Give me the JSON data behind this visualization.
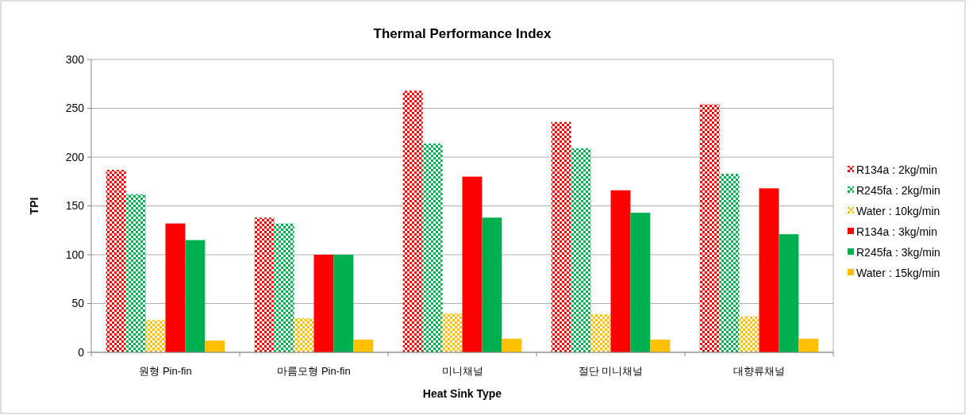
{
  "chart_data": {
    "type": "bar",
    "title": "Thermal Performance Index",
    "xlabel": "Heat Sink Type",
    "ylabel": "TPI",
    "categories": [
      "원형 Pin-fin",
      "마름모형 Pin-fin",
      "미니채널",
      "절단 미니채널",
      "대향류채널"
    ],
    "series": [
      {
        "name": "R134a : 2kg/min",
        "color": "#ff0000",
        "values": [
          187,
          138,
          268,
          236,
          254
        ]
      },
      {
        "name": "R245fa : 2kg/min",
        "color": "#00b050",
        "values": [
          162,
          132,
          214,
          209,
          183
        ]
      },
      {
        "name": "Water : 10kg/min",
        "color": "#ffc000",
        "values": [
          33,
          35,
          40,
          39,
          37
        ]
      },
      {
        "name": "R134a : 3kg/min",
        "color": "#ff0000",
        "values": [
          132,
          100,
          180,
          166,
          168
        ]
      },
      {
        "name": "R245fa : 3kg/min",
        "color": "#00b050",
        "values": [
          115,
          100,
          138,
          143,
          121
        ]
      },
      {
        "name": "Water : 15kg/min",
        "color": "#ffc000",
        "values": [
          12,
          13,
          14,
          13,
          14
        ]
      }
    ],
    "ylim": [
      0,
      300
    ],
    "yticks": [
      0,
      50,
      100,
      150,
      200,
      250,
      300
    ],
    "grid": "y",
    "legend": "right"
  }
}
